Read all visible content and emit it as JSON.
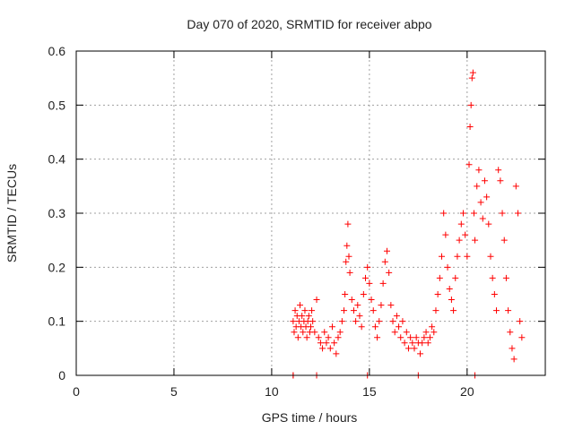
{
  "chart_data": {
    "type": "scatter",
    "title": "Day 070 of 2020, SRMTID for receiver abpo",
    "xlabel": "GPS time / hours",
    "ylabel": "SRMTID / TECUs",
    "xlim": [
      0,
      24
    ],
    "ylim": [
      0,
      0.6
    ],
    "x_ticks": [
      0,
      5,
      10,
      15,
      20
    ],
    "y_ticks": [
      0,
      0.1,
      0.2,
      0.3,
      0.4,
      0.5,
      0.6
    ],
    "x_tick_labels": [
      "0",
      "5",
      "10",
      "15",
      "20"
    ],
    "y_tick_labels": [
      "0",
      "0.1",
      "0.2",
      "0.3",
      "0.4",
      "0.5",
      "0.6"
    ],
    "grid": true,
    "marker": "+",
    "colors": {
      "series": "#ff0000",
      "grid": "#a0a0a0",
      "axis": "#000000"
    },
    "series": [
      {
        "name": "SRMTID",
        "points": [
          [
            11.1,
            0.0
          ],
          [
            11.1,
            0.0
          ],
          [
            12.3,
            0.0
          ],
          [
            14.9,
            0.0
          ],
          [
            17.5,
            0.0
          ],
          [
            20.4,
            0.0
          ],
          [
            11.1,
            0.1
          ],
          [
            11.15,
            0.08
          ],
          [
            11.2,
            0.12
          ],
          [
            11.25,
            0.09
          ],
          [
            11.3,
            0.11
          ],
          [
            11.35,
            0.07
          ],
          [
            11.4,
            0.1
          ],
          [
            11.45,
            0.13
          ],
          [
            11.5,
            0.09
          ],
          [
            11.55,
            0.11
          ],
          [
            11.6,
            0.08
          ],
          [
            11.65,
            0.1
          ],
          [
            11.7,
            0.12
          ],
          [
            11.75,
            0.09
          ],
          [
            11.8,
            0.07
          ],
          [
            11.85,
            0.1
          ],
          [
            11.9,
            0.11
          ],
          [
            11.95,
            0.08
          ],
          [
            12.0,
            0.09
          ],
          [
            12.05,
            0.12
          ],
          [
            12.1,
            0.1
          ],
          [
            12.2,
            0.08
          ],
          [
            12.3,
            0.14
          ],
          [
            12.4,
            0.07
          ],
          [
            12.5,
            0.06
          ],
          [
            12.6,
            0.05
          ],
          [
            12.7,
            0.08
          ],
          [
            12.8,
            0.06
          ],
          [
            12.9,
            0.07
          ],
          [
            13.0,
            0.05
          ],
          [
            13.1,
            0.09
          ],
          [
            13.2,
            0.06
          ],
          [
            13.3,
            0.04
          ],
          [
            13.4,
            0.07
          ],
          [
            13.5,
            0.08
          ],
          [
            13.6,
            0.1
          ],
          [
            13.7,
            0.12
          ],
          [
            13.75,
            0.15
          ],
          [
            13.8,
            0.21
          ],
          [
            13.85,
            0.24
          ],
          [
            13.9,
            0.28
          ],
          [
            13.95,
            0.22
          ],
          [
            14.0,
            0.19
          ],
          [
            14.1,
            0.14
          ],
          [
            14.2,
            0.12
          ],
          [
            14.3,
            0.1
          ],
          [
            14.4,
            0.13
          ],
          [
            14.5,
            0.11
          ],
          [
            14.6,
            0.09
          ],
          [
            14.7,
            0.15
          ],
          [
            14.8,
            0.18
          ],
          [
            14.9,
            0.2
          ],
          [
            15.0,
            0.17
          ],
          [
            15.1,
            0.14
          ],
          [
            15.2,
            0.12
          ],
          [
            15.3,
            0.09
          ],
          [
            15.4,
            0.07
          ],
          [
            15.5,
            0.1
          ],
          [
            15.6,
            0.13
          ],
          [
            15.7,
            0.17
          ],
          [
            15.8,
            0.21
          ],
          [
            15.9,
            0.23
          ],
          [
            16.0,
            0.19
          ],
          [
            16.1,
            0.13
          ],
          [
            16.2,
            0.1
          ],
          [
            16.3,
            0.08
          ],
          [
            16.4,
            0.11
          ],
          [
            16.5,
            0.09
          ],
          [
            16.6,
            0.07
          ],
          [
            16.7,
            0.1
          ],
          [
            16.8,
            0.06
          ],
          [
            16.9,
            0.08
          ],
          [
            17.0,
            0.05
          ],
          [
            17.1,
            0.07
          ],
          [
            17.2,
            0.06
          ],
          [
            17.3,
            0.05
          ],
          [
            17.4,
            0.07
          ],
          [
            17.5,
            0.06
          ],
          [
            17.6,
            0.04
          ],
          [
            17.7,
            0.06
          ],
          [
            17.8,
            0.07
          ],
          [
            17.9,
            0.08
          ],
          [
            18.0,
            0.06
          ],
          [
            18.1,
            0.07
          ],
          [
            18.2,
            0.09
          ],
          [
            18.3,
            0.08
          ],
          [
            18.4,
            0.12
          ],
          [
            18.5,
            0.15
          ],
          [
            18.6,
            0.18
          ],
          [
            18.7,
            0.22
          ],
          [
            18.8,
            0.3
          ],
          [
            18.9,
            0.26
          ],
          [
            19.0,
            0.2
          ],
          [
            19.1,
            0.16
          ],
          [
            19.2,
            0.14
          ],
          [
            19.3,
            0.12
          ],
          [
            19.4,
            0.18
          ],
          [
            19.5,
            0.22
          ],
          [
            19.6,
            0.25
          ],
          [
            19.7,
            0.28
          ],
          [
            19.8,
            0.3
          ],
          [
            19.9,
            0.26
          ],
          [
            20.0,
            0.22
          ],
          [
            20.1,
            0.39
          ],
          [
            20.15,
            0.46
          ],
          [
            20.2,
            0.5
          ],
          [
            20.25,
            0.55
          ],
          [
            20.3,
            0.56
          ],
          [
            20.35,
            0.3
          ],
          [
            20.4,
            0.25
          ],
          [
            20.5,
            0.35
          ],
          [
            20.6,
            0.38
          ],
          [
            20.7,
            0.32
          ],
          [
            20.8,
            0.29
          ],
          [
            20.9,
            0.36
          ],
          [
            21.0,
            0.33
          ],
          [
            21.1,
            0.28
          ],
          [
            21.2,
            0.22
          ],
          [
            21.3,
            0.18
          ],
          [
            21.4,
            0.15
          ],
          [
            21.5,
            0.12
          ],
          [
            21.6,
            0.38
          ],
          [
            21.7,
            0.36
          ],
          [
            21.8,
            0.3
          ],
          [
            21.9,
            0.25
          ],
          [
            22.0,
            0.18
          ],
          [
            22.1,
            0.12
          ],
          [
            22.2,
            0.08
          ],
          [
            22.3,
            0.05
          ],
          [
            22.4,
            0.03
          ],
          [
            22.5,
            0.35
          ],
          [
            22.6,
            0.3
          ],
          [
            22.7,
            0.1
          ],
          [
            22.8,
            0.07
          ]
        ]
      }
    ]
  }
}
